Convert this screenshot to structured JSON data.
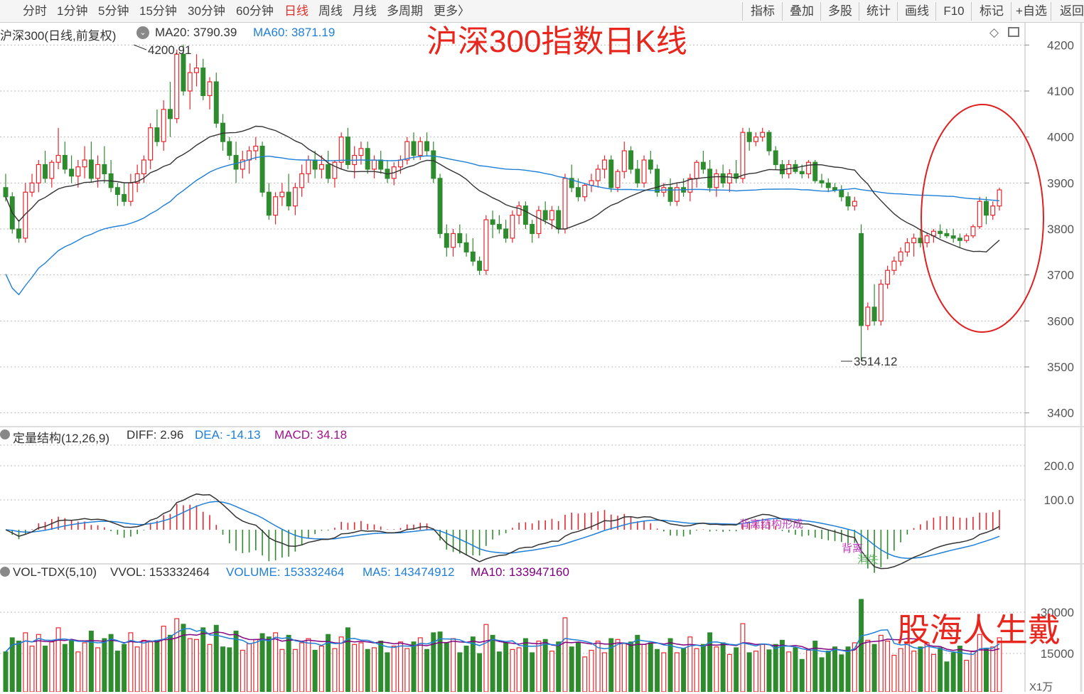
{
  "toolbar": {
    "periods": [
      "分时",
      "1分钟",
      "5分钟",
      "15分钟",
      "30分钟",
      "60分钟",
      "日线",
      "周线",
      "月线",
      "多周期",
      "更多〉"
    ],
    "active_period": "日线",
    "tools": [
      "指标",
      "叠加",
      "多股",
      "统计",
      "画线",
      "F10",
      "标记",
      "+自选",
      "返回"
    ]
  },
  "main_panel": {
    "name": "沪深300(日线,前复权)",
    "ma20_label": "MA20: 3790.39",
    "ma60_label": "MA60: 3871.19",
    "ma20_color": "#333333",
    "ma60_color": "#1e7fd8",
    "high_label": "4200.91",
    "low_label": "3514.12",
    "overlay_title": "沪深300指数日K线"
  },
  "macd_panel": {
    "name": "定量结构(12,26,9)",
    "diff_label": "DIFF: 2.96",
    "dea_label": "DEA: -14.13",
    "macd_label": "MACD: 34.18",
    "annotations": [
      "背离结构形成",
      "背离",
      "消失"
    ],
    "ticks": [
      "200.0",
      "100.0"
    ]
  },
  "vol_panel": {
    "name": "VOL-TDX(5,10)",
    "vvol_label": "VVOL: 153332464",
    "volume_label": "VOLUME: 153332464",
    "ma5_label": "MA5: 143474912",
    "ma10_label": "MA10: 133947160",
    "ticks": [
      "30000",
      "15000"
    ],
    "unit": "X1万"
  },
  "watermark": "股海人生戴",
  "colors": {
    "up": "#e8262d",
    "down": "#2e8b2e",
    "ma60": "#1e7fd8",
    "ma20": "#333333",
    "macd_dea": "#1e7fd8",
    "vol_ma10": "#800080",
    "circle": "#e02020"
  },
  "chart_data": {
    "type": "candlestick",
    "title": "沪深300指数日K线",
    "ylim": [
      3400,
      4250
    ],
    "yticks": [
      3400,
      3500,
      3600,
      3700,
      3800,
      3900,
      4000,
      4100,
      4200
    ],
    "ma20_current": 3790.39,
    "ma60_current": 3871.19,
    "period_high": 4200.91,
    "period_low": 3514.12,
    "ohlc": [
      [
        3890,
        3920,
        3860,
        3870
      ],
      [
        3870,
        3880,
        3790,
        3800
      ],
      [
        3800,
        3820,
        3770,
        3780
      ],
      [
        3780,
        3900,
        3770,
        3880
      ],
      [
        3880,
        3920,
        3870,
        3900
      ],
      [
        3900,
        3950,
        3880,
        3940
      ],
      [
        3940,
        3970,
        3900,
        3910
      ],
      [
        3910,
        3950,
        3890,
        3945
      ],
      [
        3945,
        4020,
        3930,
        3960
      ],
      [
        3960,
        3990,
        3920,
        3930
      ],
      [
        3930,
        3960,
        3900,
        3915
      ],
      [
        3915,
        3950,
        3890,
        3935
      ],
      [
        3935,
        3980,
        3910,
        3950
      ],
      [
        3950,
        3990,
        3900,
        3910
      ],
      [
        3910,
        3960,
        3890,
        3940
      ],
      [
        3940,
        3980,
        3900,
        3920
      ],
      [
        3920,
        3950,
        3880,
        3890
      ],
      [
        3890,
        3900,
        3850,
        3875
      ],
      [
        3875,
        3900,
        3850,
        3860
      ],
      [
        3860,
        3920,
        3850,
        3900
      ],
      [
        3900,
        3940,
        3880,
        3920
      ],
      [
        3920,
        3960,
        3900,
        3950
      ],
      [
        3950,
        4030,
        3930,
        4020
      ],
      [
        4020,
        4060,
        3980,
        3990
      ],
      [
        3990,
        4080,
        3970,
        4060
      ],
      [
        4060,
        4120,
        4000,
        4040
      ],
      [
        4040,
        4190,
        4030,
        4180
      ],
      [
        4180,
        4200.91,
        4090,
        4100
      ],
      [
        4100,
        4160,
        4060,
        4140
      ],
      [
        4140,
        4180,
        4110,
        4150
      ],
      [
        4150,
        4170,
        4080,
        4090
      ],
      [
        4090,
        4130,
        4060,
        4120
      ],
      [
        4120,
        4140,
        4020,
        4030
      ],
      [
        4030,
        4050,
        3970,
        3990
      ],
      [
        3990,
        4000,
        3950,
        3960
      ],
      [
        3960,
        3990,
        3900,
        3930
      ],
      [
        3930,
        3970,
        3910,
        3950
      ],
      [
        3950,
        3980,
        3920,
        3970
      ],
      [
        3970,
        4000,
        3950,
        3980
      ],
      [
        3980,
        3990,
        3870,
        3880
      ],
      [
        3880,
        3900,
        3820,
        3830
      ],
      [
        3830,
        3880,
        3810,
        3870
      ],
      [
        3870,
        3900,
        3850,
        3880
      ],
      [
        3880,
        3920,
        3840,
        3850
      ],
      [
        3850,
        3900,
        3830,
        3890
      ],
      [
        3890,
        3940,
        3870,
        3920
      ],
      [
        3920,
        3960,
        3900,
        3950
      ],
      [
        3950,
        3970,
        3910,
        3930
      ],
      [
        3930,
        3960,
        3910,
        3940
      ],
      [
        3940,
        3970,
        3900,
        3910
      ],
      [
        3910,
        3950,
        3890,
        3945
      ],
      [
        3945,
        4010,
        3930,
        4000
      ],
      [
        4000,
        4020,
        3930,
        3940
      ],
      [
        3940,
        3980,
        3910,
        3960
      ],
      [
        3960,
        3990,
        3940,
        3975
      ],
      [
        3975,
        3990,
        3920,
        3930
      ],
      [
        3930,
        3960,
        3910,
        3950
      ],
      [
        3950,
        3970,
        3920,
        3930
      ],
      [
        3930,
        3950,
        3900,
        3910
      ],
      [
        3910,
        3945,
        3895,
        3935
      ],
      [
        3935,
        3960,
        3920,
        3950
      ],
      [
        3950,
        4000,
        3940,
        3990
      ],
      [
        3990,
        4010,
        3950,
        3960
      ],
      [
        3960,
        4000,
        3950,
        3990
      ],
      [
        3990,
        4010,
        3960,
        3970
      ],
      [
        3970,
        3990,
        3900,
        3910
      ],
      [
        3910,
        3920,
        3780,
        3790
      ],
      [
        3790,
        3810,
        3740,
        3760
      ],
      [
        3760,
        3800,
        3740,
        3790
      ],
      [
        3790,
        3810,
        3760,
        3770
      ],
      [
        3770,
        3790,
        3740,
        3750
      ],
      [
        3750,
        3780,
        3720,
        3730
      ],
      [
        3730,
        3740,
        3700,
        3710
      ],
      [
        3710,
        3830,
        3700,
        3820
      ],
      [
        3820,
        3840,
        3780,
        3810
      ],
      [
        3810,
        3830,
        3790,
        3800
      ],
      [
        3800,
        3820,
        3770,
        3780
      ],
      [
        3780,
        3840,
        3770,
        3830
      ],
      [
        3830,
        3860,
        3810,
        3850
      ],
      [
        3850,
        3860,
        3800,
        3810
      ],
      [
        3810,
        3820,
        3770,
        3790
      ],
      [
        3790,
        3850,
        3780,
        3840
      ],
      [
        3840,
        3860,
        3810,
        3820
      ],
      [
        3820,
        3850,
        3800,
        3840
      ],
      [
        3840,
        3850,
        3790,
        3800
      ],
      [
        3800,
        3920,
        3790,
        3910
      ],
      [
        3910,
        3940,
        3880,
        3890
      ],
      [
        3890,
        3910,
        3860,
        3870
      ],
      [
        3870,
        3900,
        3860,
        3895
      ],
      [
        3895,
        3920,
        3880,
        3905
      ],
      [
        3905,
        3940,
        3890,
        3930
      ],
      [
        3930,
        3960,
        3910,
        3950
      ],
      [
        3950,
        3960,
        3880,
        3890
      ],
      [
        3890,
        3930,
        3880,
        3925
      ],
      [
        3925,
        3990,
        3910,
        3970
      ],
      [
        3970,
        3980,
        3920,
        3930
      ],
      [
        3930,
        3950,
        3890,
        3900
      ],
      [
        3900,
        3960,
        3890,
        3950
      ],
      [
        3950,
        3970,
        3920,
        3930
      ],
      [
        3930,
        3940,
        3870,
        3880
      ],
      [
        3880,
        3900,
        3870,
        3890
      ],
      [
        3890,
        3910,
        3850,
        3860
      ],
      [
        3860,
        3900,
        3850,
        3890
      ],
      [
        3890,
        3910,
        3870,
        3880
      ],
      [
        3880,
        3920,
        3860,
        3910
      ],
      [
        3910,
        3950,
        3890,
        3945
      ],
      [
        3945,
        3970,
        3920,
        3930
      ],
      [
        3930,
        3950,
        3880,
        3890
      ],
      [
        3890,
        3930,
        3870,
        3920
      ],
      [
        3920,
        3940,
        3890,
        3900
      ],
      [
        3900,
        3930,
        3880,
        3920
      ],
      [
        3920,
        3950,
        3900,
        3910
      ],
      [
        3910,
        4020,
        3900,
        4010
      ],
      [
        4010,
        4020,
        3970,
        3990
      ],
      [
        3990,
        4010,
        3980,
        4000
      ],
      [
        4000,
        4020,
        3990,
        4010
      ],
      [
        4010,
        4015,
        3960,
        3970
      ],
      [
        3970,
        3980,
        3930,
        3940
      ],
      [
        3940,
        3950,
        3910,
        3920
      ],
      [
        3920,
        3950,
        3910,
        3940
      ],
      [
        3940,
        3950,
        3920,
        3925
      ],
      [
        3925,
        3940,
        3910,
        3920
      ],
      [
        3920,
        3950,
        3910,
        3945
      ],
      [
        3945,
        3950,
        3900,
        3905
      ],
      [
        3905,
        3920,
        3890,
        3900
      ],
      [
        3900,
        3910,
        3880,
        3890
      ],
      [
        3890,
        3900,
        3880,
        3885
      ],
      [
        3885,
        3895,
        3860,
        3870
      ],
      [
        3870,
        3880,
        3840,
        3850
      ],
      [
        3850,
        3870,
        3840,
        3860
      ],
      [
        3790,
        3810,
        3514.12,
        3590
      ],
      [
        3590,
        3640,
        3580,
        3630
      ],
      [
        3630,
        3680,
        3590,
        3600
      ],
      [
        3600,
        3690,
        3590,
        3680
      ],
      [
        3680,
        3720,
        3670,
        3710
      ],
      [
        3710,
        3740,
        3700,
        3730
      ],
      [
        3730,
        3760,
        3720,
        3750
      ],
      [
        3750,
        3780,
        3740,
        3770
      ],
      [
        3770,
        3790,
        3740,
        3780
      ],
      [
        3780,
        3800,
        3760,
        3770
      ],
      [
        3770,
        3790,
        3760,
        3785
      ],
      [
        3785,
        3800,
        3770,
        3795
      ],
      [
        3795,
        3810,
        3780,
        3790
      ],
      [
        3790,
        3800,
        3780,
        3785
      ],
      [
        3785,
        3800,
        3770,
        3780
      ],
      [
        3780,
        3790,
        3760,
        3775
      ],
      [
        3775,
        3790,
        3770,
        3785
      ],
      [
        3785,
        3810,
        3780,
        3805
      ],
      [
        3805,
        3870,
        3800,
        3860
      ],
      [
        3860,
        3870,
        3810,
        3830
      ],
      [
        3830,
        3860,
        3820,
        3850
      ],
      [
        3850,
        3890,
        3840,
        3885
      ]
    ],
    "volume_ticks": [
      15000,
      30000
    ],
    "volume_unit": "X1万",
    "macd_ticks": [
      100,
      200
    ]
  }
}
